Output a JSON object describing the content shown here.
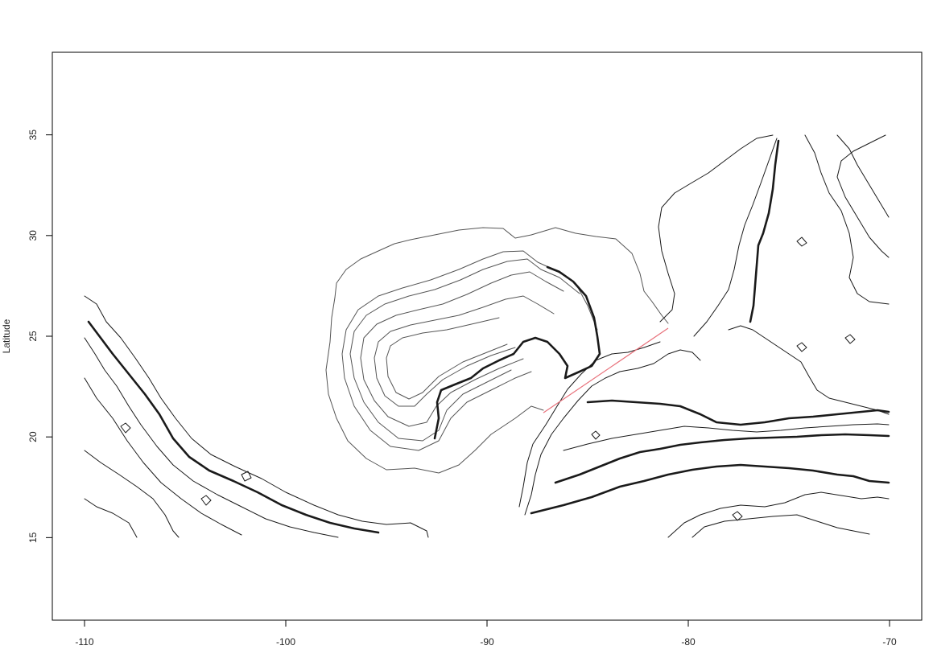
{
  "chart_data": {
    "type": "contour-map",
    "xlabel": "",
    "ylabel": "Latitude",
    "xlim": [
      -111.6,
      -68.4
    ],
    "ylim": [
      10.9,
      39.1
    ],
    "x_ticks": [
      -110,
      -100,
      -90,
      -80,
      -70
    ],
    "y_ticks": [
      15,
      20,
      25,
      30,
      35
    ],
    "x_tick_labels": [
      "-110",
      "-100",
      "-90",
      "-80",
      "-70"
    ],
    "y_tick_labels": [
      "15",
      "20",
      "25",
      "30",
      "35"
    ],
    "data_extent": {
      "lon": [
        -110,
        -70
      ],
      "lat": [
        15,
        35
      ]
    },
    "transect": {
      "start": [
        -87.2,
        21.2
      ],
      "end": [
        -81,
        25.4
      ],
      "color": "#e8707a"
    },
    "contour_color": "#1a1a1a",
    "grid": false
  }
}
